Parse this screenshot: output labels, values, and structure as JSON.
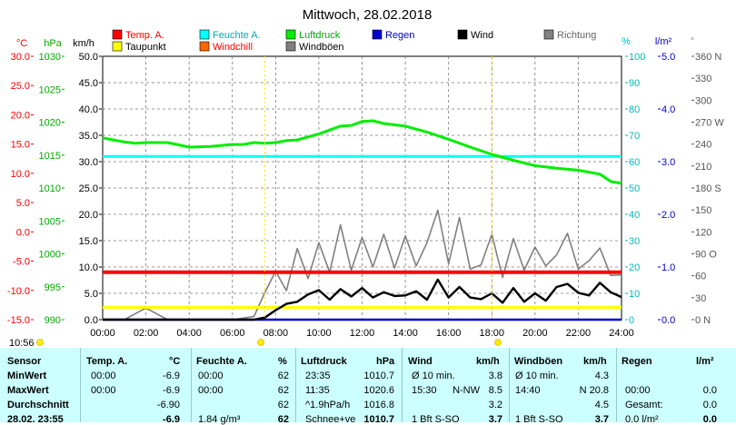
{
  "colors": {
    "temp": "#ff0000",
    "dew": "#ffff00",
    "humidity": "#00ffff",
    "windchill": "#ff6600",
    "pressure": "#00ee00",
    "gust": "#808080",
    "rain": "#0000cc",
    "wind": "#000000",
    "direction": "#808080",
    "table_bg": "#ccffff"
  },
  "chart_data": {
    "type": "line",
    "title": "Mittwoch, 28.02.2018",
    "x_ticks": [
      "00:00",
      "02:00",
      "04:00",
      "06:00",
      "08:00",
      "10:00",
      "12:00",
      "14:00",
      "16:00",
      "18:00",
      "20:00",
      "22:00",
      "24:00"
    ],
    "axes": {
      "temp": {
        "unit": "°C",
        "range": [
          -15,
          30
        ],
        "ticks": [
          "30.0",
          "25.0",
          "20.0",
          "15.0",
          "10.0",
          "5.0",
          "0.0",
          "-5.0",
          "-10.0",
          "-15.0"
        ]
      },
      "pressure": {
        "unit": "hPa",
        "range": [
          990,
          1030
        ],
        "ticks": [
          "1030",
          "1025",
          "1020",
          "1015",
          "1010",
          "1005",
          "1000",
          "995",
          "990"
        ]
      },
      "wind": {
        "unit": "km/h",
        "range": [
          0,
          50
        ],
        "ticks": [
          "50.0",
          "45.0",
          "40.0",
          "35.0",
          "30.0",
          "25.0",
          "20.0",
          "15.0",
          "10.0",
          "5.0",
          "0.0"
        ]
      },
      "humidity": {
        "unit": "%",
        "range": [
          0,
          100
        ],
        "ticks": [
          "100",
          "90",
          "80",
          "70",
          "60",
          "50",
          "40",
          "30",
          "20",
          "10",
          "0"
        ]
      },
      "rain": {
        "unit": "l/m²",
        "range": [
          0,
          5
        ],
        "ticks": [
          "5.0",
          "4.0",
          "3.0",
          "2.0",
          "1.0",
          "0.0"
        ]
      },
      "direction": {
        "unit": "°",
        "range": [
          0,
          360
        ],
        "ticks": [
          "360 N",
          "330",
          "300",
          "270 W",
          "240",
          "210",
          "180 S",
          "150",
          "120",
          "90 O",
          "60",
          "30",
          "0 N"
        ]
      }
    },
    "legend": [
      {
        "label": "Temp. A.",
        "color_key": "temp"
      },
      {
        "label": "Feuchte A.",
        "color_key": "humidity"
      },
      {
        "label": "Luftdruck",
        "color_key": "pressure"
      },
      {
        "label": "Regen",
        "color_key": "rain"
      },
      {
        "label": "Wind",
        "color_key": "wind"
      },
      {
        "label": "Richtung",
        "color_key": "direction"
      },
      {
        "label": "Taupunkt",
        "color_key": "dew"
      },
      {
        "label": "Windchill",
        "color_key": "windchill"
      },
      {
        "label": "Windböen",
        "color_key": "gust"
      }
    ],
    "series": [
      {
        "name": "Temp. A.",
        "axis": "temp",
        "x": [
          0,
          24
        ],
        "values": [
          -6.9,
          -6.9
        ]
      },
      {
        "name": "Taupunkt",
        "axis": "temp",
        "x": [
          0,
          24
        ],
        "values": [
          -12.9,
          -12.9
        ]
      },
      {
        "name": "Feuchte A.",
        "axis": "humidity",
        "x": [
          0,
          24
        ],
        "values": [
          62,
          62
        ]
      },
      {
        "name": "Luftdruck",
        "axis": "pressure",
        "x": [
          0,
          0.5,
          1,
          1.5,
          2,
          3,
          4,
          5,
          6,
          6.5,
          7,
          7.5,
          8,
          8.5,
          9,
          10,
          10.5,
          11,
          11.5,
          12,
          12.5,
          13,
          14,
          15,
          16,
          17,
          18,
          19,
          20,
          21,
          22,
          22.5,
          23,
          23.5,
          24
        ],
        "values": [
          1017.6,
          1017.3,
          1017.0,
          1016.8,
          1016.9,
          1016.9,
          1016.2,
          1016.3,
          1016.6,
          1016.6,
          1016.9,
          1016.8,
          1016.9,
          1017.2,
          1017.3,
          1018.2,
          1018.8,
          1019.4,
          1019.5,
          1020.1,
          1020.2,
          1019.8,
          1019.4,
          1018.5,
          1017.4,
          1016.2,
          1015.1,
          1014.2,
          1013.4,
          1013.0,
          1012.7,
          1012.4,
          1012.1,
          1011.0,
          1010.7
        ]
      },
      {
        "name": "Wind",
        "axis": "wind",
        "x": [
          0,
          1,
          2,
          3,
          4,
          5,
          6,
          7,
          7.5,
          8,
          8.5,
          9,
          9.5,
          10,
          10.5,
          11,
          11.5,
          12,
          12.5,
          13,
          13.5,
          14,
          14.5,
          15,
          15.5,
          16,
          16.5,
          17,
          17.5,
          18,
          18.5,
          19,
          19.5,
          20,
          20.5,
          21,
          21.5,
          22,
          22.5,
          23,
          23.5,
          24
        ],
        "values": [
          0,
          0,
          0,
          0,
          0,
          0,
          0,
          0,
          0.4,
          1.8,
          3.0,
          3.4,
          4.8,
          5.6,
          3.8,
          5.8,
          4.4,
          6.0,
          4.2,
          5.2,
          4.5,
          4.6,
          5.4,
          3.8,
          7.6,
          4.2,
          6.2,
          4.2,
          3.9,
          5.0,
          3.2,
          6.0,
          3.4,
          5.0,
          3.6,
          6.2,
          6.8,
          5.1,
          4.6,
          7.0,
          5.2,
          4.3
        ]
      },
      {
        "name": "Windböen",
        "axis": "wind",
        "x": [
          0,
          1,
          2,
          3,
          4,
          5,
          6,
          7,
          7.5,
          8,
          8.5,
          9,
          9.5,
          10,
          10.5,
          11,
          11.5,
          12,
          12.5,
          13,
          13.5,
          14,
          14.5,
          15,
          15.5,
          16,
          16.5,
          17,
          17.5,
          18,
          18.5,
          19,
          19.5,
          20,
          20.5,
          21,
          21.5,
          22,
          22.5,
          23,
          23.5,
          24
        ],
        "values": [
          0,
          0,
          2.2,
          0,
          0,
          0,
          0,
          0.6,
          5.1,
          9.2,
          5.5,
          13.5,
          7.8,
          14.6,
          9.0,
          18.0,
          9.4,
          15.6,
          10.0,
          16.2,
          9.8,
          15.9,
          10.2,
          14.6,
          20.8,
          10.6,
          19.4,
          9.6,
          10.4,
          16.2,
          8.0,
          15.4,
          9.4,
          13.8,
          10.2,
          12.3,
          16.4,
          9.6,
          11.2,
          13.6,
          8.4,
          8.5
        ]
      },
      {
        "name": "Regen",
        "axis": "rain",
        "x": [
          0,
          24
        ],
        "values": [
          0.0,
          0.0
        ]
      }
    ]
  },
  "table": {
    "headers": {
      "sensor": "Sensor",
      "temp": "Temp. A.",
      "temp_unit": "°C",
      "hum": "Feuchte A.",
      "hum_unit": "%",
      "press": "Luftdruck",
      "press_unit": "hPa",
      "wind": "Wind",
      "wind_unit": "km/h",
      "gust": "Windböen",
      "gust_unit": "km/h",
      "rain": "Regen",
      "rain_unit": "l/m²"
    },
    "rows": [
      {
        "label": "MinWert",
        "temp_time": "00:00",
        "temp_val": "-6.9",
        "hum_time": "00:00",
        "hum_val": "62",
        "press_time": "23:35",
        "press_val": "1010.7",
        "wind_time": "Ø 10 min.",
        "wind_dir": "",
        "wind_val": "3.8",
        "gust_time": "Ø 10 min.",
        "gust_val": "4.3",
        "rain_time": "",
        "rain_val": ""
      },
      {
        "label": "MaxWert",
        "temp_time": "00:00",
        "temp_val": "-6.9",
        "hum_time": "00:00",
        "hum_val": "62",
        "press_time": "11:35",
        "press_val": "1020.6",
        "wind_time": "15:30",
        "wind_dir": "N-NW",
        "wind_val": "8.5",
        "gust_time": "14:40",
        "gust_val": "N 20.8",
        "rain_time": "00:00",
        "rain_val": "0.0"
      },
      {
        "label": "Durchschnitt",
        "temp_time": "",
        "temp_val": "-6.90",
        "hum_time": "",
        "hum_val": "62",
        "press_time": "^1.9hPa/h",
        "press_val": "1016.8",
        "wind_time": "",
        "wind_dir": "",
        "wind_val": "3.2",
        "gust_time": "",
        "gust_val": "4.5",
        "rain_time": "Gesamt:",
        "rain_val": "0.0"
      },
      {
        "label": "28.02. 23:55",
        "temp_time": "",
        "temp_val": "-6.9",
        "hum_time": "1.84 g/m³",
        "hum_val": "62",
        "press_time": "Schnee+ve",
        "press_val": "1010.7",
        "wind_time": "1 Bft S-SO",
        "wind_dir": "",
        "wind_val": "3.7",
        "gust_time": "1 Bft S-SO",
        "gust_val": "3.7",
        "rain_time": "0.0 l/m²",
        "rain_val": "0.0"
      }
    ]
  },
  "footer": {
    "sunrise_time": "10:56"
  }
}
